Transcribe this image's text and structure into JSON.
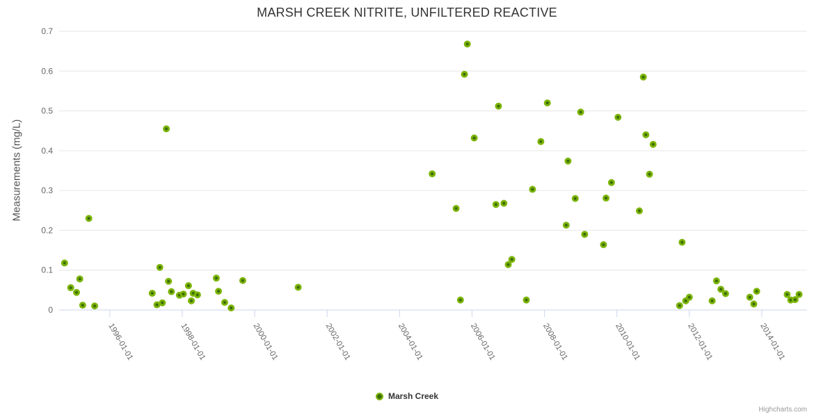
{
  "credits_label": "Highcharts.com",
  "legend": {
    "series_label": "Marsh Creek"
  },
  "colors": {
    "background": "#ffffff",
    "title_color": "#333333",
    "axis_label_color": "#666666",
    "axis_title_color": "#555555",
    "axis_line_color": "#ccd6eb",
    "grid_color": "#e6e6e6",
    "marker_fill": "#7cb50a",
    "marker_center": "#3d6a08",
    "credits_color": "#999999"
  },
  "chart_data": {
    "type": "scatter",
    "title": "MARSH CREEK NITRITE, UNFILTERED REACTIVE",
    "xlabel": "",
    "ylabel": "Measurements (mg/L)",
    "xlim": [
      1994.6,
      2015.25
    ],
    "ylim": [
      0,
      0.7
    ],
    "x_ticks": [
      1996,
      1998,
      2000,
      2002,
      2004,
      2006,
      2008,
      2010,
      2012,
      2014
    ],
    "x_tick_labels": [
      "1996-01-01",
      "1998-01-01",
      "2000-01-01",
      "2002-01-01",
      "2004-01-01",
      "2006-01-01",
      "2008-01-01",
      "2010-01-01",
      "2012-01-01",
      "2014-01-01"
    ],
    "y_ticks": [
      0,
      0.1,
      0.2,
      0.3,
      0.4,
      0.5,
      0.6,
      0.7
    ],
    "y_tick_labels": [
      "0",
      "0.1",
      "0.2",
      "0.3",
      "0.4",
      "0.5",
      "0.6",
      "0.7"
    ],
    "grid": "horizontal-only",
    "legend_position": "bottom-center",
    "series": [
      {
        "name": "Marsh Creek",
        "points": [
          [
            1994.75,
            0.118
          ],
          [
            1994.92,
            0.056
          ],
          [
            1995.08,
            0.044
          ],
          [
            1995.17,
            0.078
          ],
          [
            1995.25,
            0.012
          ],
          [
            1995.42,
            0.23
          ],
          [
            1995.58,
            0.01
          ],
          [
            1997.17,
            0.042
          ],
          [
            1997.3,
            0.013
          ],
          [
            1997.38,
            0.107
          ],
          [
            1997.45,
            0.018
          ],
          [
            1997.56,
            0.455
          ],
          [
            1997.62,
            0.072
          ],
          [
            1997.7,
            0.046
          ],
          [
            1997.92,
            0.037
          ],
          [
            1998.03,
            0.04
          ],
          [
            1998.17,
            0.061
          ],
          [
            1998.25,
            0.023
          ],
          [
            1998.3,
            0.042
          ],
          [
            1998.42,
            0.038
          ],
          [
            1998.94,
            0.08
          ],
          [
            1999.0,
            0.047
          ],
          [
            1999.17,
            0.019
          ],
          [
            1999.35,
            0.005
          ],
          [
            1999.67,
            0.074
          ],
          [
            2001.2,
            0.057
          ],
          [
            2004.9,
            0.342
          ],
          [
            2005.56,
            0.255
          ],
          [
            2005.68,
            0.025
          ],
          [
            2005.79,
            0.592
          ],
          [
            2005.87,
            0.668
          ],
          [
            2006.06,
            0.432
          ],
          [
            2006.66,
            0.265
          ],
          [
            2006.73,
            0.512
          ],
          [
            2006.88,
            0.268
          ],
          [
            2007.0,
            0.114
          ],
          [
            2007.1,
            0.127
          ],
          [
            2007.5,
            0.025
          ],
          [
            2007.67,
            0.303
          ],
          [
            2007.9,
            0.423
          ],
          [
            2008.08,
            0.52
          ],
          [
            2008.6,
            0.213
          ],
          [
            2008.65,
            0.374
          ],
          [
            2008.85,
            0.28
          ],
          [
            2009.0,
            0.497
          ],
          [
            2009.11,
            0.19
          ],
          [
            2009.63,
            0.164
          ],
          [
            2009.7,
            0.281
          ],
          [
            2009.85,
            0.32
          ],
          [
            2010.03,
            0.484
          ],
          [
            2010.62,
            0.249
          ],
          [
            2010.73,
            0.585
          ],
          [
            2010.8,
            0.44
          ],
          [
            2010.9,
            0.341
          ],
          [
            2011.0,
            0.416
          ],
          [
            2011.73,
            0.011
          ],
          [
            2011.8,
            0.17
          ],
          [
            2011.9,
            0.023
          ],
          [
            2012.0,
            0.032
          ],
          [
            2012.63,
            0.023
          ],
          [
            2012.75,
            0.073
          ],
          [
            2012.87,
            0.052
          ],
          [
            2013.0,
            0.041
          ],
          [
            2013.67,
            0.032
          ],
          [
            2013.78,
            0.015
          ],
          [
            2013.86,
            0.047
          ],
          [
            2014.7,
            0.039
          ],
          [
            2014.8,
            0.025
          ],
          [
            2014.92,
            0.026
          ],
          [
            2015.03,
            0.039
          ]
        ]
      }
    ]
  }
}
